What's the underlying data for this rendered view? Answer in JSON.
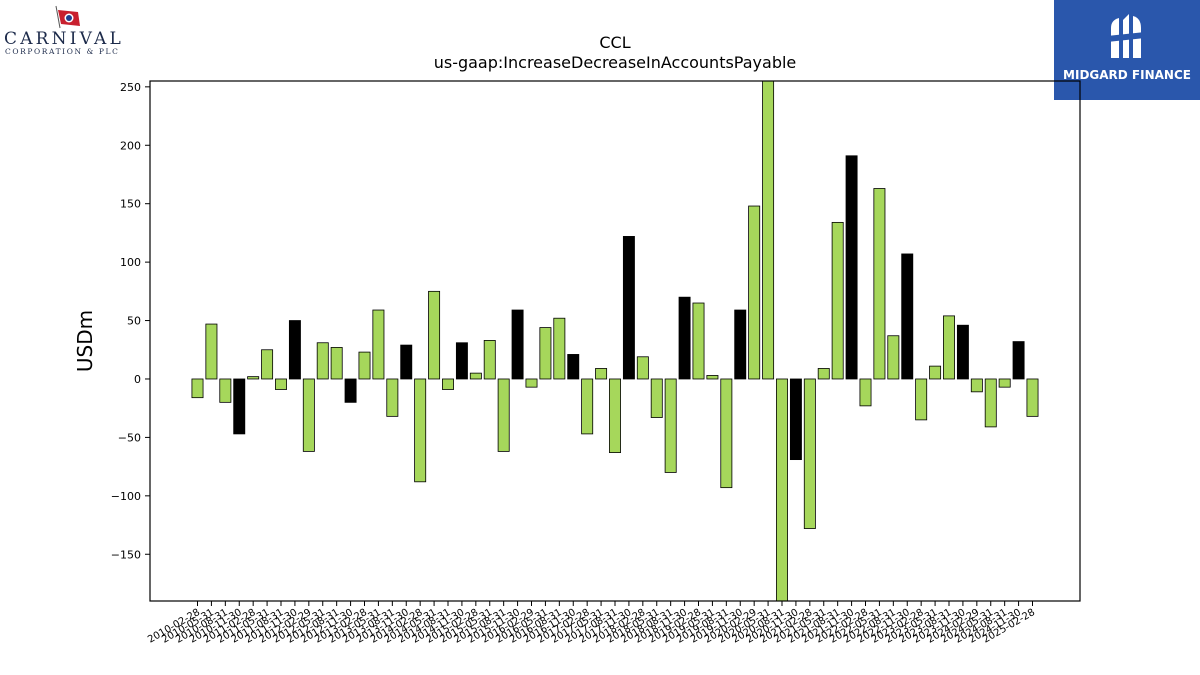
{
  "logos": {
    "carnival": {
      "name": "CARNIVAL",
      "subtitle": "CORPORATION & PLC"
    },
    "midgard": {
      "name": "MIDGARD FINANCE"
    }
  },
  "chart_data": {
    "type": "bar",
    "title": "CCL",
    "subtitle": "us-gaap:IncreaseDecreaseInAccountsPayable",
    "xlabel": "",
    "ylabel": "USDm",
    "ylim": [
      -190,
      255
    ],
    "yticks": [
      -150,
      -100,
      -50,
      0,
      50,
      100,
      150,
      200,
      250
    ],
    "grid": false,
    "colors": {
      "green": "#a6d75b",
      "black": "#000000",
      "edge": "#000000"
    },
    "categories": [
      "2010-02-28",
      "2010-05-31",
      "2010-08-31",
      "2010-11-30",
      "2011-02-28",
      "2011-05-31",
      "2011-08-31",
      "2011-11-30",
      "2012-02-29",
      "2012-05-31",
      "2012-08-31",
      "2012-11-30",
      "2013-02-28",
      "2013-05-31",
      "2013-08-31",
      "2013-11-30",
      "2014-02-28",
      "2014-05-31",
      "2014-08-31",
      "2014-11-30",
      "2015-02-28",
      "2015-05-31",
      "2015-08-31",
      "2015-11-30",
      "2016-02-29",
      "2016-05-31",
      "2016-08-31",
      "2016-11-30",
      "2017-02-28",
      "2017-05-31",
      "2017-08-31",
      "2017-11-30",
      "2018-02-28",
      "2018-05-31",
      "2018-08-31",
      "2018-11-30",
      "2019-02-28",
      "2019-05-31",
      "2019-08-31",
      "2019-11-30",
      "2020-02-29",
      "2020-05-31",
      "2020-08-31",
      "2020-11-30",
      "2021-02-28",
      "2021-05-31",
      "2021-08-31",
      "2021-11-30",
      "2022-02-28",
      "2022-05-31",
      "2022-08-31",
      "2022-11-30",
      "2023-02-28",
      "2023-05-31",
      "2023-08-31",
      "2023-11-30",
      "2024-02-29",
      "2024-05-31",
      "2024-08-31",
      "2024-11-30",
      "2025-02-28"
    ],
    "values": [
      -16,
      47,
      -20,
      -47,
      2,
      25,
      -9,
      50,
      -62,
      31,
      27,
      -20,
      23,
      59,
      -32,
      29,
      -88,
      75,
      -9,
      31,
      5,
      33,
      -62,
      59,
      -7,
      44,
      52,
      21,
      -47,
      9,
      -63,
      122,
      19,
      -33,
      -80,
      70,
      65,
      3,
      -93,
      59,
      148,
      265,
      -210,
      -69,
      -128,
      9,
      134,
      191,
      -23,
      163,
      37,
      107,
      -35,
      11,
      54,
      46,
      -11,
      -41,
      -7,
      32,
      -32
    ],
    "bar_colors": [
      "green",
      "green",
      "green",
      "black",
      "green",
      "green",
      "green",
      "black",
      "green",
      "green",
      "green",
      "black",
      "green",
      "green",
      "green",
      "black",
      "green",
      "green",
      "green",
      "black",
      "green",
      "green",
      "green",
      "black",
      "green",
      "green",
      "green",
      "black",
      "green",
      "green",
      "green",
      "black",
      "green",
      "green",
      "green",
      "black",
      "green",
      "green",
      "green",
      "black",
      "green",
      "green",
      "green",
      "black",
      "green",
      "green",
      "green",
      "black",
      "green",
      "green",
      "green",
      "black",
      "green",
      "green",
      "green",
      "black",
      "green",
      "green",
      "green",
      "black",
      "green"
    ]
  }
}
